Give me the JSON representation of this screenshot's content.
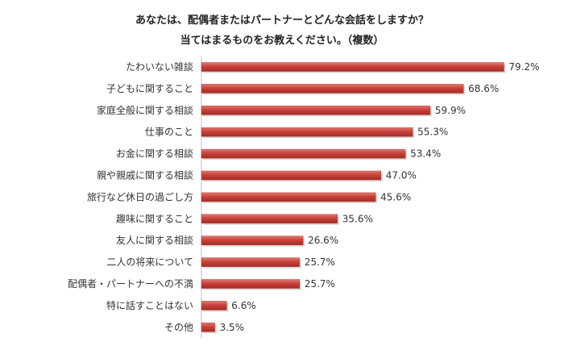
{
  "chart_data": {
    "type": "bar",
    "orientation": "horizontal",
    "title_line1": "あなたは、配偶者またはパートナーとどんな会話をしますか？",
    "title_line2": "当てはまるものをお教えください。（複数）",
    "categories": [
      "たわいない雑談",
      "子どもに関すること",
      "家庭全般に関する相談",
      "仕事のこと",
      "お金に関する相談",
      "親や親戚に関する相談",
      "旅行など休日の過ごし方",
      "趣味に関すること",
      "友人に関する相談",
      "二人の将来について",
      "配偶者・パートナーへの不満",
      "特に話すことはない",
      "その他"
    ],
    "values": [
      79.2,
      68.6,
      59.9,
      55.3,
      53.4,
      47.0,
      45.6,
      35.6,
      26.6,
      25.7,
      25.7,
      6.6,
      3.5
    ],
    "value_labels": [
      "79.2%",
      "68.6%",
      "59.9%",
      "55.3%",
      "53.4%",
      "47.0%",
      "45.6%",
      "35.6%",
      "26.6%",
      "25.7%",
      "25.7%",
      "6.6%",
      "3.5%"
    ],
    "bar_color": "#c0392b",
    "grid": false,
    "legend": "none"
  }
}
